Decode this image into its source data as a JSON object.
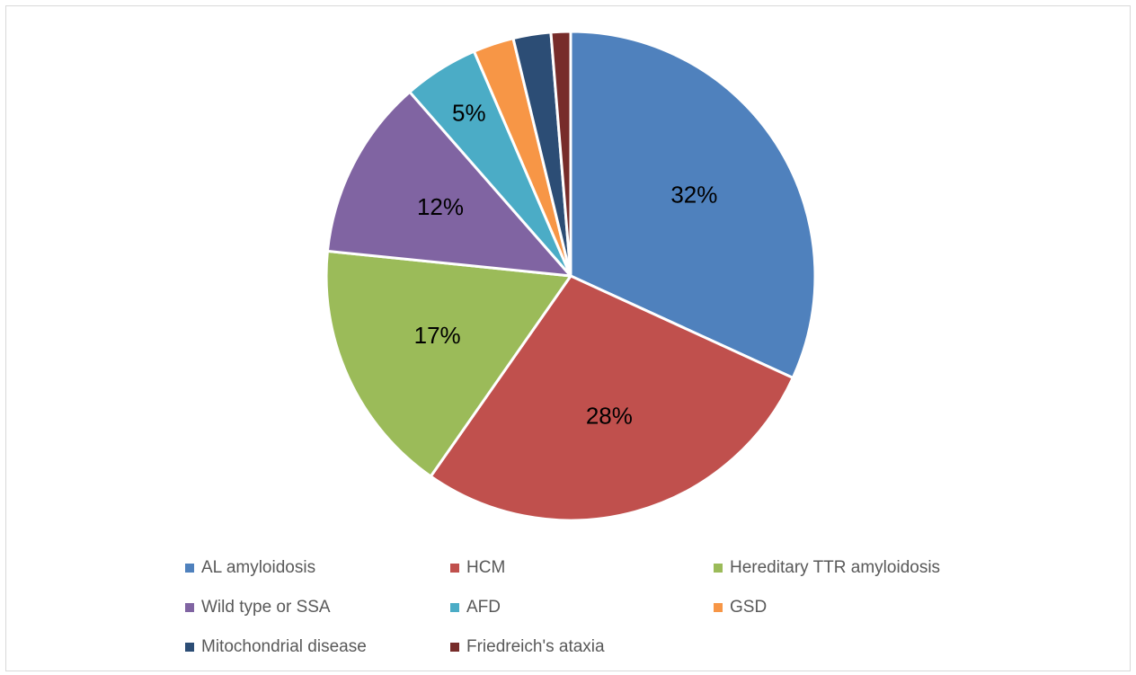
{
  "chart_data": {
    "type": "pie",
    "categories": [
      "AL amyloidosis",
      "HCM",
      "Hereditary TTR amyloidosis",
      "Wild type or SSA",
      "AFD",
      "GSD",
      "Mitochondrial disease",
      "Friedreich's ataxia"
    ],
    "values": [
      32,
      28,
      17,
      12,
      5,
      2.7,
      2.5,
      1.3
    ],
    "value_labels": [
      "32%",
      "28%",
      "17%",
      "12%",
      "5%",
      null,
      null,
      null
    ],
    "colors": [
      "#4f81bd",
      "#c0504d",
      "#9bbb59",
      "#8064a2",
      "#4bacc6",
      "#f79646",
      "#2c4d75",
      "#772c2a"
    ],
    "legend": "bottom"
  }
}
